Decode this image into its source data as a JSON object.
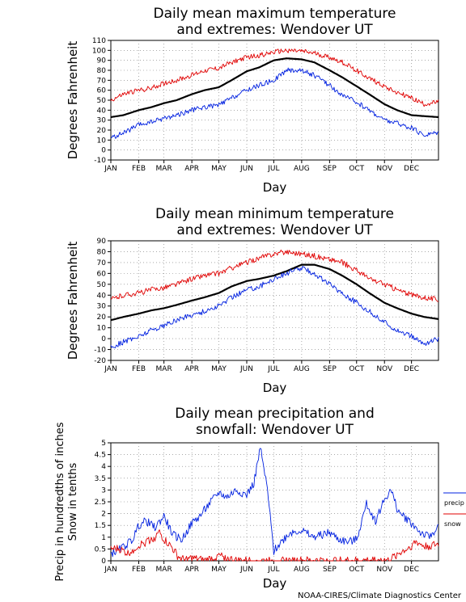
{
  "chart_data": [
    {
      "type": "line",
      "title": [
        "Daily mean maximum temperature",
        "and extremes: Wendover UT"
      ],
      "xlabel": "Day",
      "ylabel": "Degrees Fahrenheit",
      "ylim": [
        -10,
        110
      ],
      "yticks": [
        -10,
        0,
        10,
        20,
        30,
        40,
        50,
        60,
        70,
        80,
        90,
        100,
        110
      ],
      "xlim": [
        1,
        365
      ],
      "grid": true,
      "months": [
        "JAN",
        "FEB",
        "MAR",
        "APR",
        "MAY",
        "JUN",
        "JUL",
        "AUG",
        "SEP",
        "OCT",
        "NOV",
        "DEC"
      ],
      "month_days": [
        1,
        32,
        60,
        91,
        121,
        152,
        182,
        213,
        244,
        274,
        305,
        335
      ],
      "series": [
        {
          "role": "mean",
          "color": "#000000",
          "x": [
            1,
            15,
            32,
            46,
            60,
            74,
            91,
            105,
            121,
            135,
            152,
            166,
            182,
            196,
            213,
            227,
            244,
            258,
            274,
            288,
            305,
            319,
            335,
            349,
            365
          ],
          "values": [
            33,
            35,
            40,
            43,
            47,
            50,
            56,
            60,
            63,
            70,
            79,
            83,
            90,
            92,
            91,
            88,
            80,
            73,
            64,
            56,
            46,
            40,
            35,
            34,
            33
          ]
        },
        {
          "role": "record high",
          "color": "#e00000",
          "x": [
            1,
            15,
            32,
            46,
            60,
            74,
            91,
            105,
            121,
            135,
            152,
            166,
            182,
            196,
            213,
            227,
            244,
            258,
            274,
            288,
            305,
            319,
            335,
            349,
            365
          ],
          "values": [
            50,
            56,
            60,
            62,
            67,
            70,
            75,
            80,
            82,
            88,
            93,
            95,
            98,
            100,
            99,
            97,
            93,
            88,
            80,
            72,
            64,
            58,
            52,
            46,
            48
          ]
        },
        {
          "role": "record low",
          "color": "#0020e0",
          "x": [
            1,
            15,
            32,
            46,
            60,
            74,
            91,
            105,
            121,
            135,
            152,
            166,
            182,
            196,
            213,
            227,
            244,
            258,
            274,
            288,
            305,
            319,
            335,
            349,
            365
          ],
          "values": [
            12,
            17,
            25,
            28,
            32,
            35,
            40,
            43,
            45,
            52,
            60,
            65,
            70,
            80,
            80,
            75,
            65,
            55,
            48,
            40,
            30,
            27,
            22,
            15,
            18
          ]
        }
      ]
    },
    {
      "type": "line",
      "title": [
        "Daily mean minimum temperature",
        "and extremes: Wendover UT"
      ],
      "xlabel": "Day",
      "ylabel": "Degrees Fahrenheit",
      "ylim": [
        -20,
        90
      ],
      "yticks": [
        -20,
        -10,
        0,
        10,
        20,
        30,
        40,
        50,
        60,
        70,
        80,
        90
      ],
      "xlim": [
        1,
        365
      ],
      "grid": true,
      "months": [
        "JAN",
        "FEB",
        "MAR",
        "APR",
        "MAY",
        "JUN",
        "JUL",
        "AUG",
        "SEP",
        "OCT",
        "NOV",
        "DEC"
      ],
      "month_days": [
        1,
        32,
        60,
        91,
        121,
        152,
        182,
        213,
        244,
        274,
        305,
        335
      ],
      "series": [
        {
          "role": "mean",
          "color": "#000000",
          "x": [
            1,
            15,
            32,
            46,
            60,
            74,
            91,
            105,
            121,
            135,
            152,
            166,
            182,
            196,
            213,
            227,
            244,
            258,
            274,
            288,
            305,
            319,
            335,
            349,
            365
          ],
          "values": [
            17,
            20,
            23,
            26,
            28,
            31,
            35,
            38,
            42,
            48,
            53,
            55,
            58,
            62,
            68,
            68,
            64,
            58,
            50,
            42,
            33,
            28,
            23,
            20,
            18
          ]
        },
        {
          "role": "record high",
          "color": "#e00000",
          "x": [
            1,
            15,
            32,
            46,
            60,
            74,
            91,
            105,
            121,
            135,
            152,
            166,
            182,
            196,
            213,
            227,
            244,
            258,
            274,
            288,
            305,
            319,
            335,
            349,
            365
          ],
          "values": [
            36,
            40,
            42,
            45,
            47,
            50,
            55,
            58,
            60,
            65,
            70,
            74,
            78,
            80,
            78,
            76,
            73,
            70,
            63,
            55,
            50,
            45,
            40,
            38,
            36
          ]
        },
        {
          "role": "record low",
          "color": "#0020e0",
          "x": [
            1,
            15,
            32,
            46,
            60,
            74,
            91,
            105,
            121,
            135,
            152,
            166,
            182,
            196,
            213,
            227,
            244,
            258,
            274,
            288,
            305,
            319,
            335,
            349,
            365
          ],
          "values": [
            -8,
            -3,
            2,
            8,
            12,
            17,
            22,
            25,
            30,
            38,
            45,
            48,
            55,
            60,
            65,
            60,
            50,
            42,
            33,
            25,
            15,
            8,
            2,
            -5,
            0
          ]
        }
      ]
    },
    {
      "type": "line",
      "title": [
        "Daily mean precipitation and",
        "snowfall: Wendover UT"
      ],
      "xlabel": "Day",
      "ylabel": [
        "Precip in hundredths of inches",
        "Snow in tenths"
      ],
      "ylim": [
        0,
        5
      ],
      "yticks": [
        0,
        0.5,
        1,
        1.5,
        2,
        2.5,
        3,
        3.5,
        4,
        4.5,
        5
      ],
      "xlim": [
        1,
        365
      ],
      "grid": true,
      "legend": "right",
      "months": [
        "JAN",
        "FEB",
        "MAR",
        "APR",
        "MAY",
        "JUN",
        "JUL",
        "AUG",
        "SEP",
        "OCT",
        "NOV",
        "DEC"
      ],
      "month_days": [
        1,
        32,
        60,
        91,
        121,
        152,
        182,
        213,
        244,
        274,
        305,
        335
      ],
      "series": [
        {
          "name": "precip",
          "color": "#0020e0",
          "x": [
            1,
            12,
            25,
            32,
            40,
            50,
            60,
            70,
            80,
            91,
            100,
            110,
            121,
            130,
            140,
            152,
            160,
            167,
            175,
            182,
            190,
            200,
            213,
            225,
            235,
            244,
            255,
            265,
            274,
            285,
            295,
            305,
            312,
            320,
            335,
            345,
            355,
            365
          ],
          "values": [
            0.3,
            0.5,
            0.9,
            1.5,
            1.7,
            1.4,
            1.9,
            1.1,
            0.9,
            1.6,
            1.9,
            2.4,
            2.9,
            2.7,
            3.0,
            2.8,
            3.3,
            4.8,
            3.0,
            0.4,
            0.8,
            1.2,
            1.3,
            1.0,
            1.1,
            1.2,
            0.9,
            0.8,
            0.9,
            2.4,
            1.7,
            2.6,
            3.0,
            2.1,
            1.6,
            1.2,
            1.0,
            1.5
          ]
        },
        {
          "name": "snow",
          "color": "#e00000",
          "x": [
            1,
            10,
            20,
            30,
            40,
            50,
            55,
            60,
            68,
            75,
            80,
            91,
            105,
            121,
            140,
            160,
            180,
            200,
            220,
            240,
            260,
            280,
            300,
            310,
            320,
            330,
            340,
            350,
            365
          ],
          "values": [
            0.5,
            0.5,
            0.3,
            0.6,
            0.8,
            1.0,
            1.2,
            0.9,
            0.6,
            0.2,
            0.05,
            0.1,
            0.0,
            0.2,
            0.0,
            0.0,
            0.0,
            0.0,
            0.0,
            0.0,
            0.0,
            0.0,
            0.05,
            0.0,
            0.3,
            0.5,
            0.8,
            0.6,
            0.7
          ]
        }
      ]
    }
  ],
  "credit": "NOAA-CIRES/Climate Diagnostics Center"
}
